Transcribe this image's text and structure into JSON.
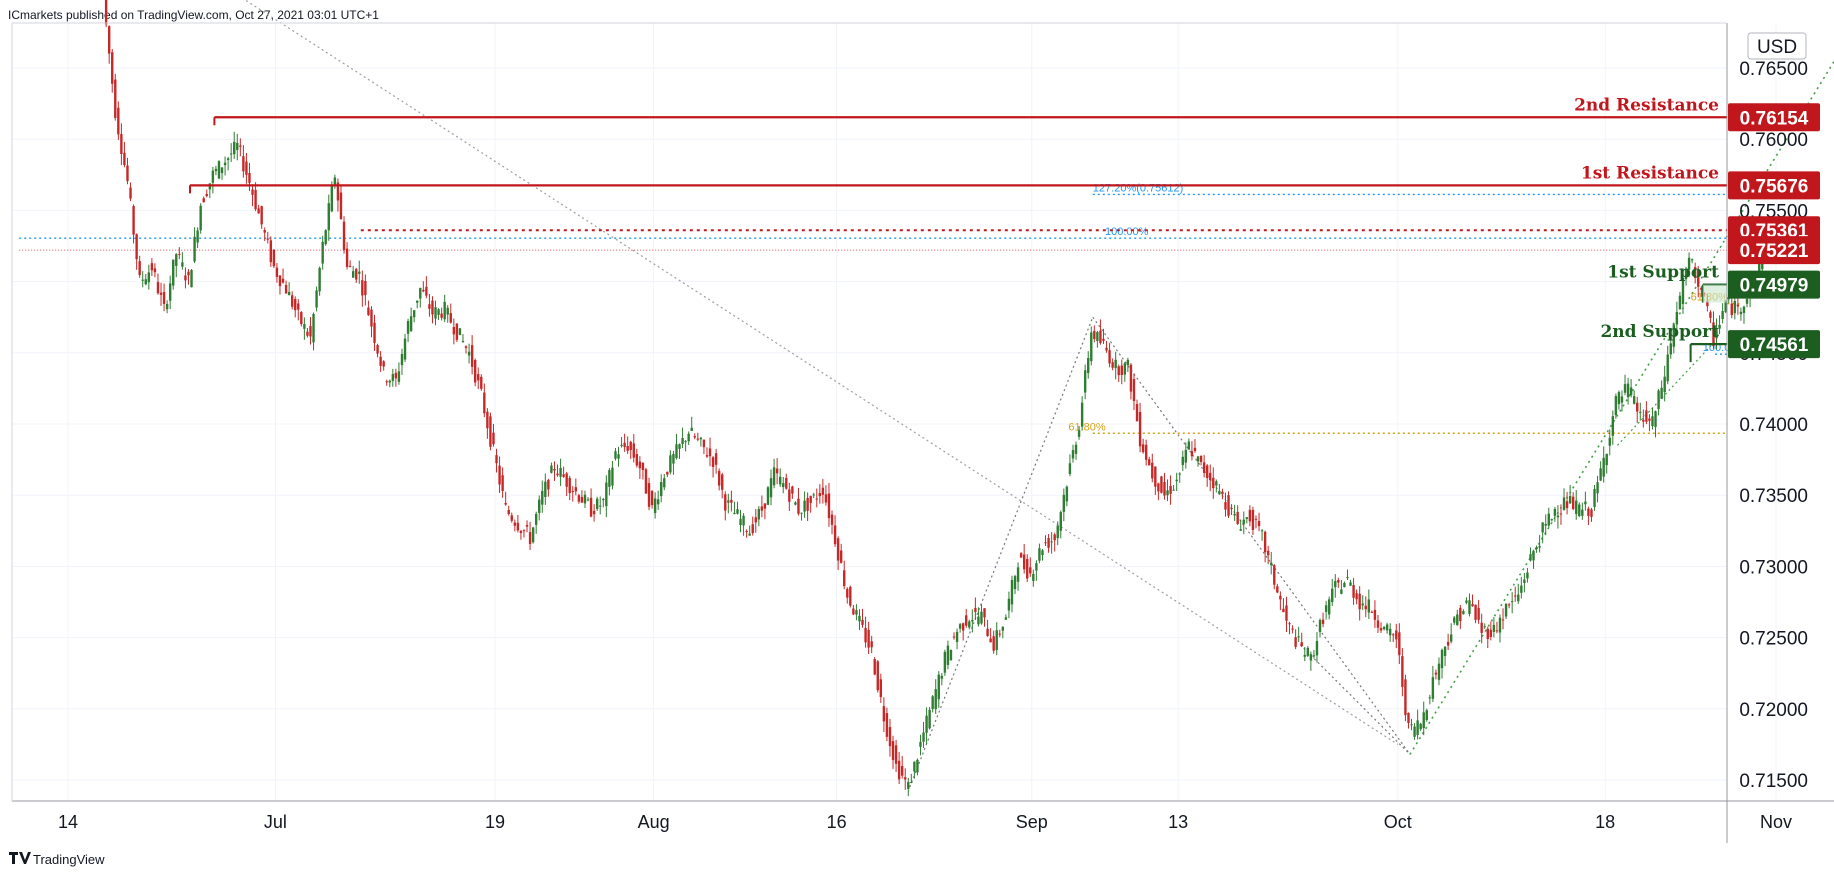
{
  "header": {
    "publisher_line": "ICmarkets published on TradingView.com, Oct 27, 2021 03:01 UTC+1"
  },
  "footer": {
    "brand": "TradingView"
  },
  "colors": {
    "up_candle": "#2e7d32",
    "down_candle": "#c62828",
    "resistance": "#c0161c",
    "support": "#1b5e20",
    "fib_blue": "#2196f3",
    "fib_orange": "#d4a017",
    "trend_green": "#43a047",
    "trend_gray": "#9e9e9e"
  },
  "chart_data": {
    "type": "candlestick",
    "symbol_currency": "USD",
    "ylim": [
      0.7145,
      0.7695
    ],
    "y_ticks": [
      "0.76500",
      "0.76000",
      "0.75500",
      "0.75000",
      "0.74500",
      "0.74000",
      "0.73500",
      "0.73000",
      "0.72500",
      "0.72000",
      "0.71500"
    ],
    "y_tick_values": [
      0.765,
      0.76,
      0.755,
      0.75,
      0.745,
      0.74,
      0.735,
      0.73,
      0.725,
      0.72,
      0.715
    ],
    "x_ticks": [
      {
        "label": "14",
        "day": 0
      },
      {
        "label": "Jul",
        "day": 17
      },
      {
        "label": "19",
        "day": 35
      },
      {
        "label": "Aug",
        "day": 48
      },
      {
        "label": "16",
        "day": 63
      },
      {
        "label": "Sep",
        "day": 79
      },
      {
        "label": "13",
        "day": 91
      },
      {
        "label": "Oct",
        "day": 109
      },
      {
        "label": "18",
        "day": 126
      },
      {
        "label": "Nov",
        "day": 140
      }
    ],
    "x_range_days": [
      -4,
      152
    ],
    "price_path": [
      [
        3,
        0.77
      ],
      [
        4,
        0.762
      ],
      [
        5,
        0.757
      ],
      [
        6,
        0.75
      ],
      [
        7,
        0.751
      ],
      [
        8,
        0.748
      ],
      [
        9,
        0.752
      ],
      [
        10,
        0.75
      ],
      [
        11,
        0.7555
      ],
      [
        12,
        0.7575
      ],
      [
        13,
        0.7585
      ],
      [
        14,
        0.7595
      ],
      [
        15,
        0.757
      ],
      [
        16,
        0.754
      ],
      [
        17,
        0.751
      ],
      [
        18,
        0.7495
      ],
      [
        19,
        0.7475
      ],
      [
        20,
        0.746
      ],
      [
        21,
        0.7525
      ],
      [
        22,
        0.7575
      ],
      [
        23,
        0.751
      ],
      [
        24,
        0.7505
      ],
      [
        25,
        0.747
      ],
      [
        26,
        0.7435
      ],
      [
        27,
        0.743
      ],
      [
        28,
        0.747
      ],
      [
        29,
        0.7495
      ],
      [
        30,
        0.7478
      ],
      [
        31,
        0.748
      ],
      [
        32,
        0.7465
      ],
      [
        33,
        0.745
      ],
      [
        34,
        0.742
      ],
      [
        35,
        0.738
      ],
      [
        36,
        0.734
      ],
      [
        37,
        0.733
      ],
      [
        38,
        0.732
      ],
      [
        39,
        0.735
      ],
      [
        40,
        0.737
      ],
      [
        41,
        0.736
      ],
      [
        42,
        0.735
      ],
      [
        43,
        0.734
      ],
      [
        44,
        0.7345
      ],
      [
        45,
        0.738
      ],
      [
        46,
        0.7385
      ],
      [
        47,
        0.737
      ],
      [
        48,
        0.734
      ],
      [
        49,
        0.7365
      ],
      [
        50,
        0.738
      ],
      [
        51,
        0.7395
      ],
      [
        52,
        0.7385
      ],
      [
        53,
        0.7375
      ],
      [
        54,
        0.7345
      ],
      [
        55,
        0.7335
      ],
      [
        56,
        0.7325
      ],
      [
        57,
        0.734
      ],
      [
        58,
        0.7365
      ],
      [
        59,
        0.7355
      ],
      [
        60,
        0.734
      ],
      [
        61,
        0.7345
      ],
      [
        62,
        0.7355
      ],
      [
        63,
        0.732
      ],
      [
        64,
        0.728
      ],
      [
        65,
        0.726
      ],
      [
        66,
        0.724
      ],
      [
        67,
        0.7195
      ],
      [
        68,
        0.716
      ],
      [
        69,
        0.7145
      ],
      [
        70,
        0.7175
      ],
      [
        71,
        0.7205
      ],
      [
        72,
        0.7235
      ],
      [
        73,
        0.7255
      ],
      [
        74,
        0.7265
      ],
      [
        75,
        0.7265
      ],
      [
        76,
        0.7245
      ],
      [
        77,
        0.7265
      ],
      [
        78,
        0.7305
      ],
      [
        79,
        0.7295
      ],
      [
        80,
        0.7315
      ],
      [
        81,
        0.732
      ],
      [
        82,
        0.736
      ],
      [
        83,
        0.74
      ],
      [
        84,
        0.7465
      ],
      [
        85,
        0.7455
      ],
      [
        86,
        0.744
      ],
      [
        87,
        0.744
      ],
      [
        88,
        0.739
      ],
      [
        89,
        0.7365
      ],
      [
        90,
        0.735
      ],
      [
        91,
        0.736
      ],
      [
        92,
        0.7385
      ],
      [
        93,
        0.737
      ],
      [
        94,
        0.736
      ],
      [
        95,
        0.7345
      ],
      [
        96,
        0.733
      ],
      [
        97,
        0.7335
      ],
      [
        98,
        0.732
      ],
      [
        99,
        0.729
      ],
      [
        100,
        0.726
      ],
      [
        101,
        0.7245
      ],
      [
        102,
        0.7235
      ],
      [
        103,
        0.7265
      ],
      [
        104,
        0.7285
      ],
      [
        105,
        0.729
      ],
      [
        106,
        0.7275
      ],
      [
        107,
        0.727
      ],
      [
        108,
        0.7255
      ],
      [
        109,
        0.725
      ],
      [
        110,
        0.7185
      ],
      [
        111,
        0.719
      ],
      [
        112,
        0.722
      ],
      [
        113,
        0.7245
      ],
      [
        114,
        0.7265
      ],
      [
        115,
        0.7275
      ],
      [
        116,
        0.7255
      ],
      [
        117,
        0.7255
      ],
      [
        118,
        0.727
      ],
      [
        119,
        0.728
      ],
      [
        120,
        0.7305
      ],
      [
        121,
        0.7325
      ],
      [
        122,
        0.734
      ],
      [
        123,
        0.7345
      ],
      [
        124,
        0.734
      ],
      [
        125,
        0.734
      ],
      [
        126,
        0.7375
      ],
      [
        127,
        0.7415
      ],
      [
        128,
        0.7425
      ],
      [
        129,
        0.7405
      ],
      [
        130,
        0.74
      ],
      [
        131,
        0.7435
      ],
      [
        132,
        0.748
      ],
      [
        133,
        0.7515
      ],
      [
        134,
        0.7495
      ],
      [
        135,
        0.746
      ],
      [
        136,
        0.7485
      ],
      [
        137,
        0.748
      ],
      [
        138,
        0.7495
      ],
      [
        139,
        0.7515
      ]
    ],
    "levels": [
      {
        "id": "2nd-resistance",
        "label": "2nd Resistance",
        "value": "0.76154",
        "price": 0.76154,
        "kind": "resistance",
        "from_day": 12
      },
      {
        "id": "1st-resistance",
        "label": "1st Resistance",
        "value": "0.75676",
        "price": 0.75676,
        "kind": "resistance",
        "from_day": 10
      },
      {
        "id": "level-75361",
        "label": "",
        "value": "0.75361",
        "price": 0.75361,
        "kind": "dotted-red",
        "from_day": 24
      },
      {
        "id": "level-75221",
        "label": "",
        "value": "0.75221",
        "price": 0.75221,
        "kind": "thin-red",
        "from_day": -4
      },
      {
        "id": "1st-support",
        "label": "1st Support",
        "value": "0.74979",
        "price": 0.74979,
        "kind": "support",
        "from_day": 134
      },
      {
        "id": "2nd-support",
        "label": "2nd Support",
        "value": "0.74561",
        "price": 0.74561,
        "kind": "support",
        "from_day": 133
      }
    ],
    "fib_annotations": [
      {
        "id": "fib-127",
        "text": "127.20%(0.75612)",
        "price": 0.75612,
        "color": "fib_blue",
        "from_day": 84,
        "label_day": 84
      },
      {
        "id": "fib-100-top",
        "text": "100.00%",
        "price": 0.75305,
        "color": "fib_blue",
        "from_day": -4,
        "label_day": 85
      },
      {
        "id": "fib-100-low",
        "text": "100.00%",
        "price": 0.7449,
        "color": "fib_blue",
        "from_day": 135,
        "label_day": 134
      },
      {
        "id": "fib-618-high",
        "text": "61.80%",
        "price": 0.74845,
        "color": "fib_orange",
        "from_day": 137,
        "label_day": 133
      },
      {
        "id": "fib-618-low",
        "text": "61.80%",
        "price": 0.73935,
        "color": "fib_orange",
        "from_day": 84,
        "label_day": 82
      }
    ]
  }
}
